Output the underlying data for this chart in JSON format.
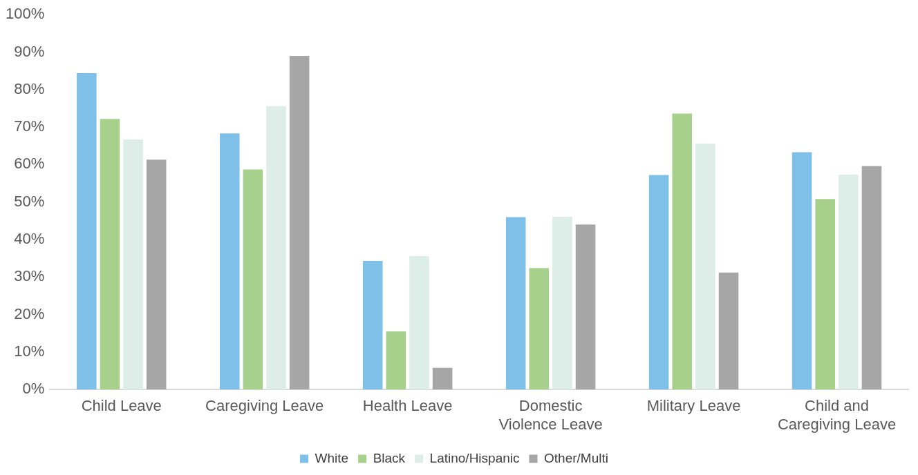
{
  "chart_data": {
    "type": "bar",
    "categories": [
      "Child Leave",
      "Caregiving Leave",
      "Health Leave",
      "Domestic Violence Leave",
      "Military Leave",
      "Child and Caregiving Leave"
    ],
    "series": [
      {
        "name": "White",
        "color": "#7fc0e8",
        "values": [
          84.4,
          68.3,
          34.3,
          46.0,
          57.2,
          63.3
        ]
      },
      {
        "name": "Black",
        "color": "#a8d08d",
        "values": [
          72.2,
          58.7,
          15.5,
          32.4,
          73.6,
          50.8
        ]
      },
      {
        "name": "Latino/Hispanic",
        "color": "#ddeee8",
        "values": [
          66.7,
          75.6,
          35.6,
          46.1,
          65.6,
          57.3
        ]
      },
      {
        "name": "Other/Multi",
        "color": "#a6a6a6",
        "values": [
          61.3,
          89.0,
          5.8,
          44.0,
          31.2,
          59.6
        ]
      }
    ],
    "ylim": [
      0,
      100
    ],
    "yticks": [
      {
        "value": 0,
        "label": "0%"
      },
      {
        "value": 10,
        "label": "10%"
      },
      {
        "value": 20,
        "label": "20%"
      },
      {
        "value": 30,
        "label": "30%"
      },
      {
        "value": 40,
        "label": "40%"
      },
      {
        "value": 50,
        "label": "50%"
      },
      {
        "value": 60,
        "label": "60%"
      },
      {
        "value": 70,
        "label": "70%"
      },
      {
        "value": 80,
        "label": "80%"
      },
      {
        "value": 90,
        "label": "90%"
      },
      {
        "value": 100,
        "label": "100%"
      }
    ],
    "grid": false,
    "legend": "bottom"
  }
}
